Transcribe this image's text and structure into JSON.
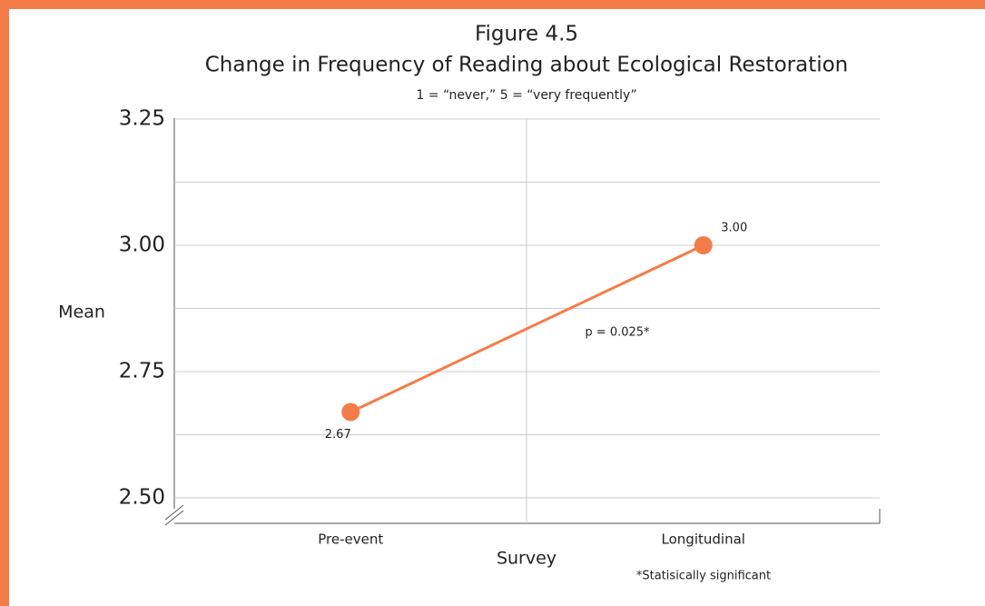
{
  "chart_data": {
    "type": "line",
    "figure_label": "Figure 4.5",
    "title": "Change in Frequency of Reading about Ecological Restoration",
    "subtitle": "1 = “never,” 5 = “very frequently”",
    "y_label": "Mean",
    "x_label": "Survey",
    "categories": [
      "Pre-event",
      "Longitudinal"
    ],
    "series": [
      {
        "name": "Mean",
        "color": "#f47c48",
        "values": [
          2.67,
          3.0
        ],
        "value_labels": [
          "2.67",
          "3.00"
        ]
      }
    ],
    "ylim": [
      2.5,
      3.25
    ],
    "yticks": [
      {
        "value": 2.5,
        "label": "2.50"
      },
      2.75,
      {
        "value": 3,
        "label": "3.00"
      },
      3.25
    ],
    "minor_yticks": [
      2.625,
      2.875,
      3.125
    ],
    "grid": true,
    "annotations": [
      "p = 0.025*"
    ],
    "footnote": "*Statisically significant"
  }
}
